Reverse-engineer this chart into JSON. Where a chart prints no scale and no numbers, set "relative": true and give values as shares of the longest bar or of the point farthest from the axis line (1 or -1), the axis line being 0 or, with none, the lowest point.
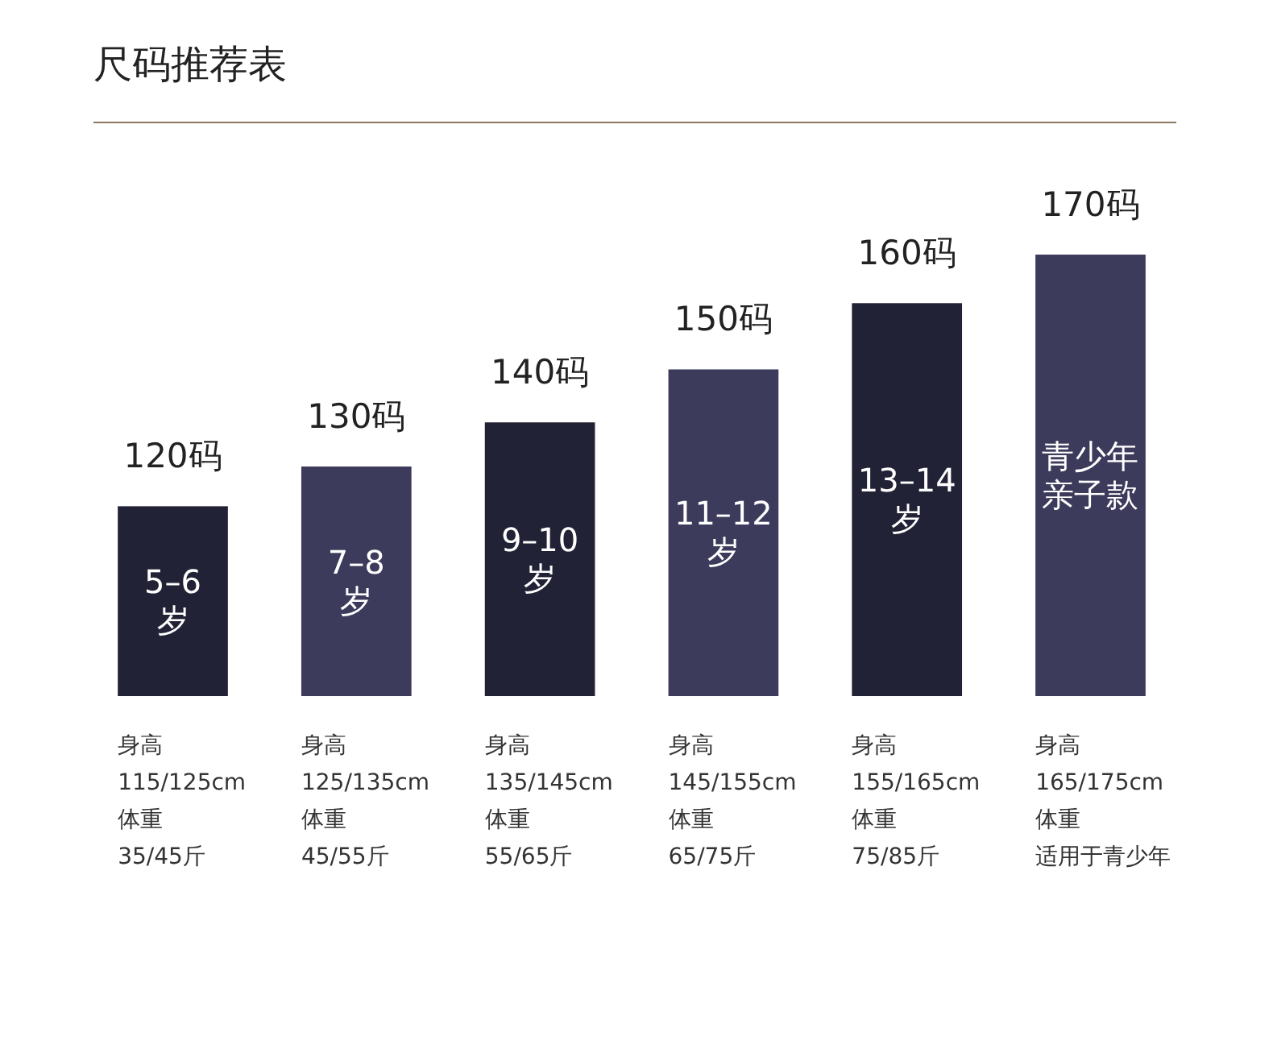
{
  "chart_data": {
    "type": "bar",
    "title": "尺码推荐表",
    "relative": true,
    "categories": [
      "120码",
      "130码",
      "140码",
      "150码",
      "160码",
      "170码"
    ],
    "values": [
      0.43,
      0.52,
      0.62,
      0.74,
      0.89,
      1
    ],
    "colors": [
      "#222236",
      "#3d3b5c",
      "#222236",
      "#3d3b5c",
      "#222236",
      "#3d3b5c"
    ],
    "annotations": [
      "5–6",
      "岁",
      "7–8",
      "岁",
      "9–10",
      "岁",
      "11–12",
      "岁",
      "13–14",
      "岁",
      "青少年",
      "亲子款",
      "身高",
      "115/125cm",
      "体重",
      "35/45斤",
      "身高",
      "125/135cm",
      "体重",
      "45/55斤",
      "身高",
      "135/145cm",
      "体重",
      "55/65斤",
      "身高",
      "145/155cm",
      "体重",
      "65/75斤",
      "身高",
      "155/165cm",
      "体重",
      "75/85斤",
      "身高",
      "165/175cm",
      "体重",
      "适用于青少年"
    ]
  }
}
